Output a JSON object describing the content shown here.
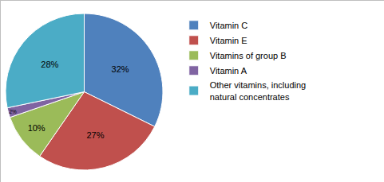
{
  "chart_data": {
    "type": "pie",
    "categories": [
      "Vitamin C",
      "Vitamin E",
      "Vitamins of group B",
      "Vitamin A",
      "Other vitamins, including natural concentrates"
    ],
    "values": [
      32,
      27,
      10,
      2,
      28
    ],
    "value_labels": [
      "32%",
      "27%",
      "10%",
      "2%",
      "28%"
    ],
    "colors": [
      "#4f81bd",
      "#c0504d",
      "#9bbb59",
      "#8064a2",
      "#4bacc6"
    ],
    "data_labels": true,
    "legend": "right"
  }
}
